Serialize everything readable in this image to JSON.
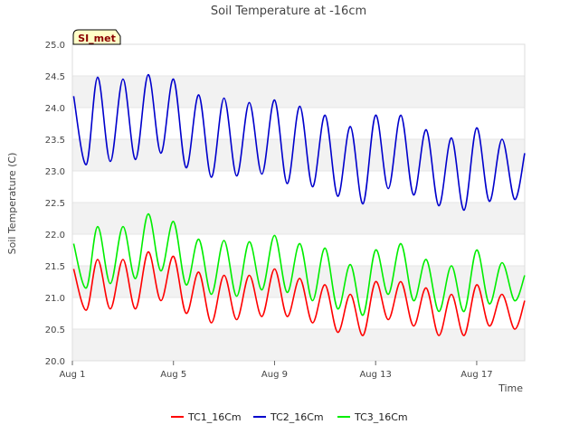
{
  "chart_data": {
    "type": "line",
    "title": "Soil Temperature at -16cm",
    "xlabel": "Time",
    "ylabel": "Soil Temperature (C)",
    "badge": "SI_met",
    "xlim": [
      0,
      17.9
    ],
    "ylim": [
      20.0,
      25.0
    ],
    "yticks": [
      "20.0",
      "20.5",
      "21.0",
      "21.5",
      "22.0",
      "22.5",
      "23.0",
      "23.5",
      "24.0",
      "24.5",
      "25.0"
    ],
    "xticks": [
      {
        "label": "Aug 1",
        "day": 0
      },
      {
        "label": "Aug 5",
        "day": 4
      },
      {
        "label": "Aug 9",
        "day": 8
      },
      {
        "label": "Aug 13",
        "day": 12
      },
      {
        "label": "Aug 17",
        "day": 16
      }
    ],
    "grid": true,
    "legend": "bottom-center",
    "x_days": [
      0.05,
      0.55,
      1.0,
      1.5,
      2.0,
      2.5,
      3.0,
      3.5,
      4.0,
      4.5,
      5.0,
      5.5,
      6.0,
      6.5,
      7.0,
      7.5,
      8.0,
      8.5,
      9.0,
      9.5,
      10.0,
      10.5,
      11.0,
      11.5,
      12.0,
      12.5,
      13.0,
      13.5,
      14.0,
      14.5,
      15.0,
      15.5,
      16.0,
      16.5,
      17.0,
      17.5,
      17.9
    ],
    "series": [
      {
        "name": "TC1_16Cm",
        "color": "#ff0000",
        "values": [
          21.45,
          20.8,
          21.6,
          20.82,
          21.6,
          20.82,
          21.72,
          20.95,
          21.65,
          20.75,
          21.4,
          20.6,
          21.35,
          20.65,
          21.35,
          20.7,
          21.45,
          20.7,
          21.3,
          20.6,
          21.2,
          20.45,
          21.05,
          20.4,
          21.25,
          20.65,
          21.25,
          20.55,
          21.15,
          20.4,
          21.05,
          20.4,
          21.2,
          20.55,
          21.05,
          20.5,
          20.95
        ]
      },
      {
        "name": "TC2_16Cm",
        "color": "#0000cc",
        "values": [
          24.18,
          23.1,
          24.48,
          23.15,
          24.45,
          23.18,
          24.52,
          23.28,
          24.45,
          23.05,
          24.2,
          22.9,
          24.15,
          22.92,
          24.08,
          22.95,
          24.12,
          22.8,
          24.02,
          22.75,
          23.88,
          22.6,
          23.7,
          22.48,
          23.88,
          22.72,
          23.88,
          22.62,
          23.65,
          22.45,
          23.52,
          22.38,
          23.68,
          22.52,
          23.5,
          22.55,
          23.28
        ]
      },
      {
        "name": "TC3_16Cm",
        "color": "#00ee00",
        "values": [
          21.85,
          21.15,
          22.12,
          21.22,
          22.12,
          21.3,
          22.32,
          21.42,
          22.2,
          21.2,
          21.92,
          21.05,
          21.9,
          21.02,
          21.88,
          21.12,
          21.98,
          21.08,
          21.85,
          20.95,
          21.78,
          20.82,
          21.52,
          20.72,
          21.75,
          21.05,
          21.85,
          20.95,
          21.6,
          20.78,
          21.5,
          20.78,
          21.75,
          20.9,
          21.55,
          20.95,
          21.35
        ]
      }
    ]
  }
}
